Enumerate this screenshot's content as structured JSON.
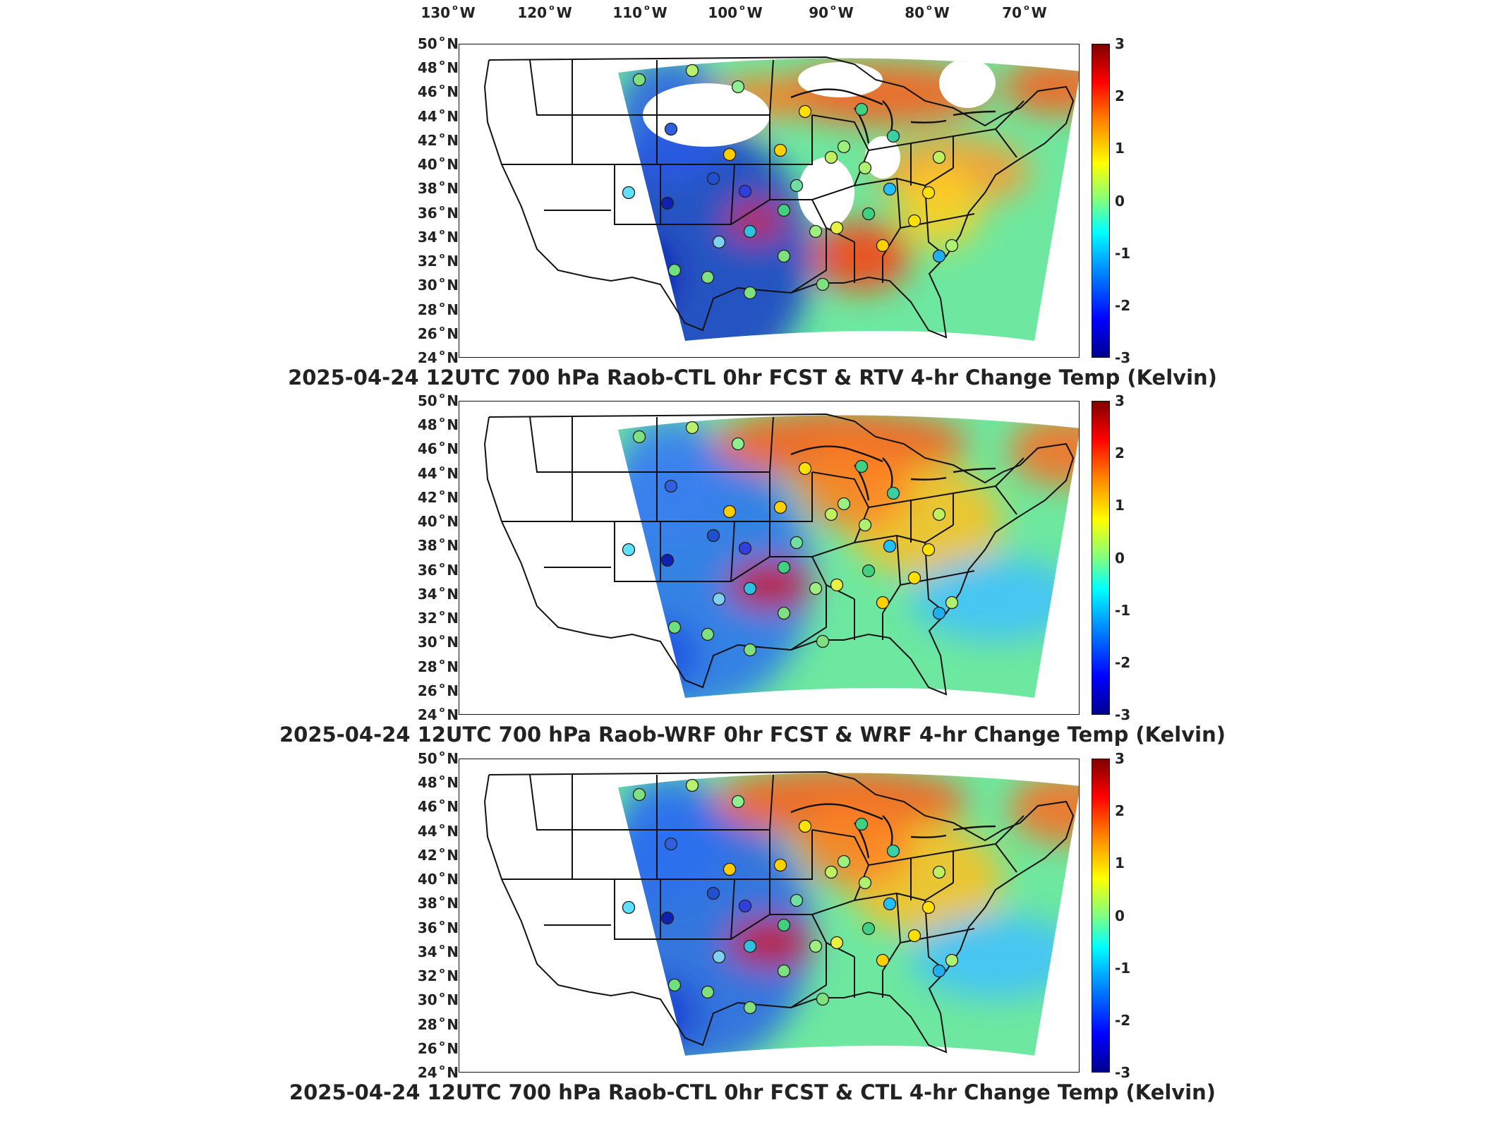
{
  "longitude_labels": [
    {
      "deg": "130",
      "dir": "W"
    },
    {
      "deg": "120",
      "dir": "W"
    },
    {
      "deg": "110",
      "dir": "W"
    },
    {
      "deg": "100",
      "dir": "W"
    },
    {
      "deg": "90",
      "dir": "W"
    },
    {
      "deg": "80",
      "dir": "W"
    },
    {
      "deg": "70",
      "dir": "W"
    }
  ],
  "latitude_labels": [
    {
      "deg": "50",
      "dir": "N"
    },
    {
      "deg": "48",
      "dir": "N"
    },
    {
      "deg": "46",
      "dir": "N"
    },
    {
      "deg": "44",
      "dir": "N"
    },
    {
      "deg": "42",
      "dir": "N"
    },
    {
      "deg": "40",
      "dir": "N"
    },
    {
      "deg": "38",
      "dir": "N"
    },
    {
      "deg": "36",
      "dir": "N"
    },
    {
      "deg": "34",
      "dir": "N"
    },
    {
      "deg": "32",
      "dir": "N"
    },
    {
      "deg": "30",
      "dir": "N"
    },
    {
      "deg": "28",
      "dir": "N"
    },
    {
      "deg": "26",
      "dir": "N"
    },
    {
      "deg": "24",
      "dir": "N"
    }
  ],
  "colorbar": {
    "ticks": [
      "3",
      "2",
      "1",
      "0",
      "-1",
      "-2",
      "-3"
    ],
    "colormap": [
      "#00008f",
      "#0000ff",
      "#00a0ff",
      "#00ffff",
      "#80ff80",
      "#ffff00",
      "#ff8000",
      "#ff0000",
      "#800000"
    ]
  },
  "panels": [
    {
      "title": "2025-04-24 12UTC 700 hPa Raob-CTL 0hr FCST & RTV 4-hr Change Temp (Kelvin)"
    },
    {
      "title": "2025-04-24 12UTC 700 hPa Raob-WRF 0hr FCST & WRF 4-hr Change Temp (Kelvin)"
    },
    {
      "title": "2025-04-24 12UTC 700 hPa Raob-CTL 0hr FCST & CTL 4-hr Change Temp (Kelvin)"
    }
  ]
}
